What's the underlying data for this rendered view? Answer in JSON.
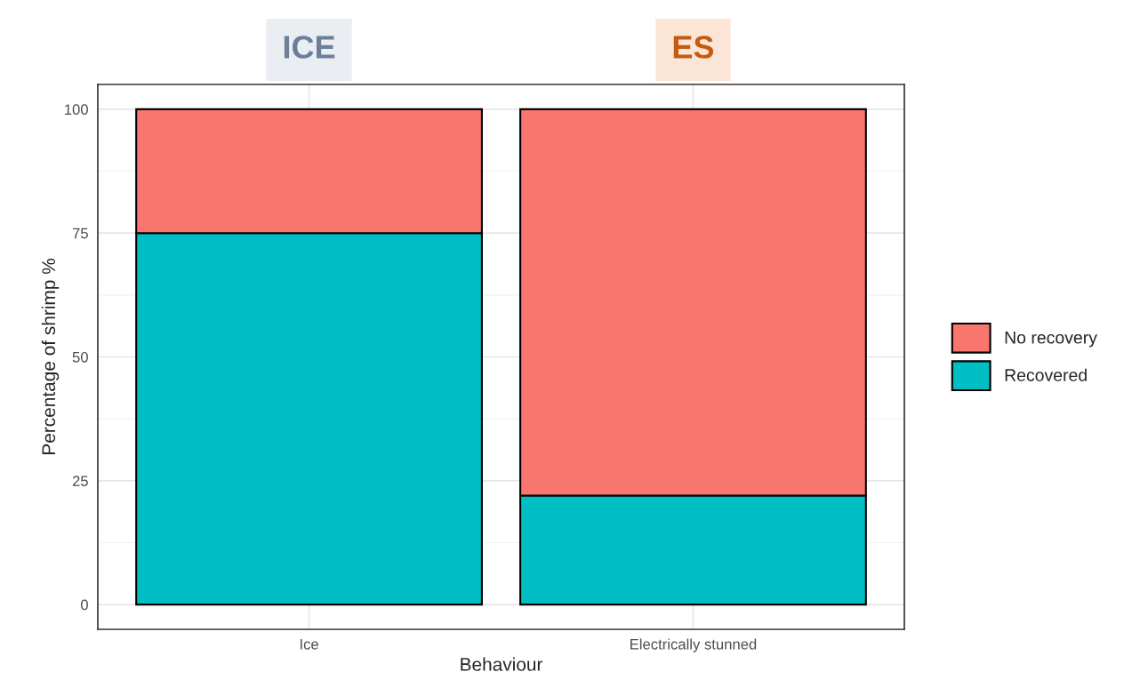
{
  "chart_data": {
    "type": "bar",
    "xlabel": "Behaviour",
    "ylabel": "Percentage of shrimp %",
    "categories": [
      "Ice",
      "Electrically stunned"
    ],
    "stacked": true,
    "series": [
      {
        "name": "Recovered",
        "color": "#00bfc4",
        "values": [
          75,
          22
        ]
      },
      {
        "name": "No recovery",
        "color": "#f8766d",
        "values": [
          25,
          78
        ]
      }
    ],
    "ylim": [
      -5,
      105
    ],
    "yticks": [
      0,
      25,
      50,
      75,
      100
    ],
    "grid": true,
    "legend": "right",
    "annotations": [
      "ICE",
      "ES"
    ]
  }
}
